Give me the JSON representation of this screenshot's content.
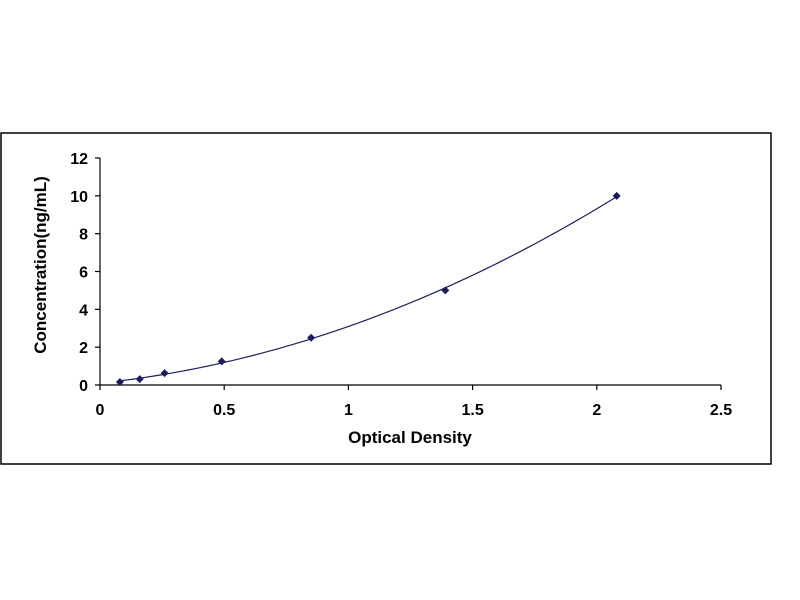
{
  "chart_data": {
    "type": "scatter",
    "title": "",
    "xlabel": "Optical Density",
    "ylabel": "Concentration(ng/mL)",
    "xlim": [
      0,
      2.5
    ],
    "ylim": [
      0,
      12
    ],
    "x_ticks": [
      "0",
      "0.5",
      "1",
      "1.5",
      "2",
      "2.5"
    ],
    "y_ticks": [
      "0",
      "2",
      "4",
      "6",
      "8",
      "10",
      "12"
    ],
    "grid": false,
    "legend": "none",
    "series": [
      {
        "x": [
          0.08,
          0.16,
          0.26,
          0.49,
          0.85,
          1.39,
          2.08
        ],
        "y": [
          0.156,
          0.312,
          0.625,
          1.25,
          2.5,
          5,
          10
        ],
        "marker": "diamond",
        "trendline": "polynomial"
      }
    ],
    "colors": {
      "marker": "#1b1b5e",
      "line": "#1f1f5a",
      "frame": "#000000"
    }
  }
}
